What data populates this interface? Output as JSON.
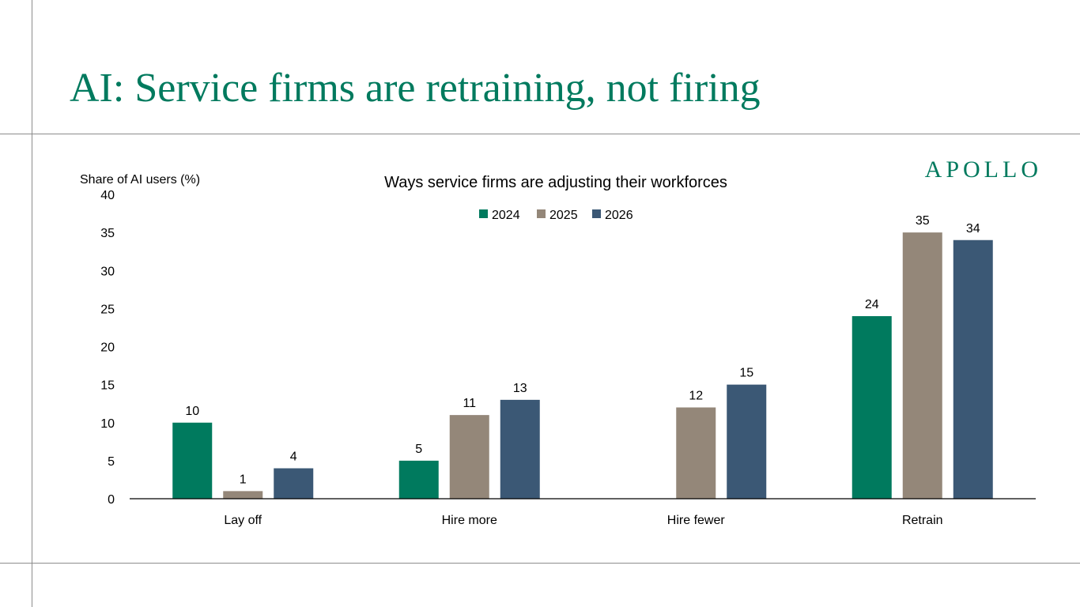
{
  "slide": {
    "title": "AI: Service firms are retraining, not firing",
    "logo": "APOLLO"
  },
  "chart_data": {
    "type": "bar",
    "title": "Ways service firms are adjusting their workforces",
    "ylabel": "Share of AI users (%)",
    "xlabel": "",
    "categories": [
      "Lay off",
      "Hire more",
      "Hire fewer",
      "Retrain"
    ],
    "series": [
      {
        "name": "2024",
        "color": "#007a5e",
        "values": [
          10,
          5,
          null,
          24
        ]
      },
      {
        "name": "2025",
        "color": "#948779",
        "values": [
          1,
          11,
          12,
          35
        ]
      },
      {
        "name": "2026",
        "color": "#3b5875",
        "values": [
          4,
          13,
          15,
          34
        ]
      }
    ],
    "ylim": [
      0,
      40
    ],
    "yticks": [
      0,
      5,
      10,
      15,
      20,
      25,
      30,
      35,
      40
    ],
    "grid": false,
    "legend": "top-center"
  }
}
